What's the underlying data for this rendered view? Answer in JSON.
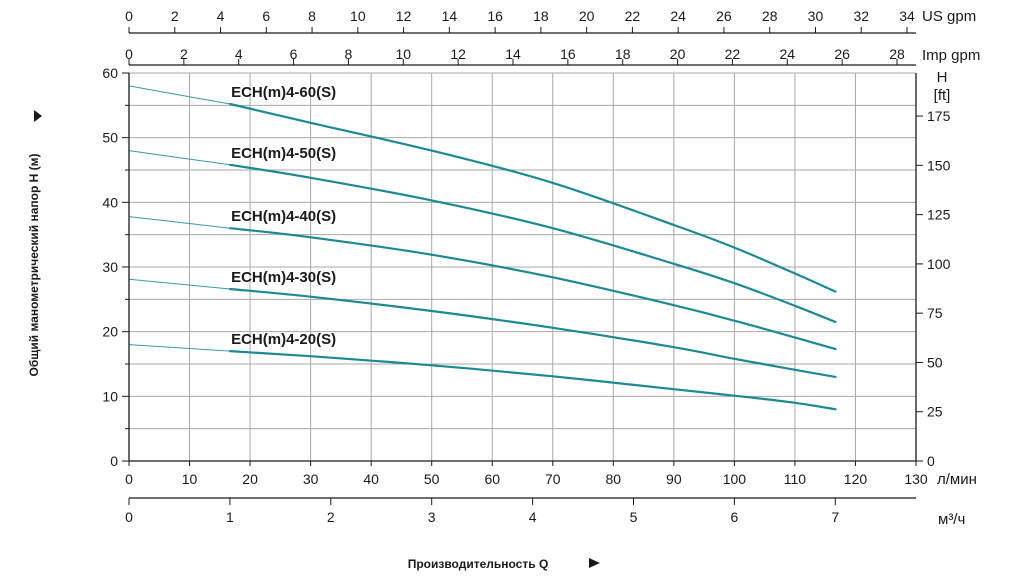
{
  "chart_data": {
    "type": "line",
    "x_label": "Производительность Q",
    "y_label": "Общий манометрический напор H (м)",
    "xlim": [
      0,
      130
    ],
    "ylim": [
      0,
      60
    ],
    "x_unit": "л/мин",
    "x_ticks": [
      0,
      10,
      20,
      30,
      40,
      50,
      60,
      70,
      80,
      90,
      100,
      110,
      120,
      130
    ],
    "y_ticks": [
      0,
      10,
      20,
      30,
      40,
      50,
      60
    ],
    "grid": true,
    "secondary_axes": {
      "us_gpm": {
        "unit": "US gpm",
        "max": 34,
        "ticks": [
          0,
          2,
          4,
          6,
          8,
          10,
          12,
          14,
          16,
          18,
          20,
          22,
          24,
          26,
          28,
          30,
          32,
          34
        ]
      },
      "imp_gpm": {
        "unit": "Imp gpm",
        "max": 28,
        "ticks": [
          0,
          2,
          4,
          6,
          8,
          10,
          12,
          14,
          16,
          18,
          20,
          22,
          24,
          26,
          28
        ]
      },
      "m3h": {
        "unit": "м³/ч",
        "max": 7.8,
        "ticks": [
          0,
          1,
          2,
          3,
          4,
          5,
          6,
          7
        ]
      },
      "ft": {
        "unit_top": "H",
        "unit": "[ft]",
        "max": 196.85,
        "ticks": [
          0,
          25,
          50,
          75,
          100,
          125,
          150,
          175
        ]
      }
    },
    "operating_range": [
      16.7,
      116.7
    ],
    "series": [
      {
        "name": "ECH(m)4-60(S)",
        "x": [
          0,
          16.7,
          30,
          50,
          70,
          90,
          100,
          110,
          116.7
        ],
        "y": [
          58,
          55.2,
          52.3,
          48,
          43,
          36.5,
          33,
          29,
          26.2
        ]
      },
      {
        "name": "ECH(m)4-50(S)",
        "x": [
          0,
          16.7,
          30,
          50,
          70,
          90,
          100,
          110,
          116.7
        ],
        "y": [
          48,
          45.8,
          43.8,
          40.3,
          36,
          30.5,
          27.5,
          24,
          21.5
        ]
      },
      {
        "name": "ECH(m)4-40(S)",
        "x": [
          0,
          16.7,
          30,
          50,
          70,
          90,
          100,
          110,
          116.7
        ],
        "y": [
          37.8,
          36,
          34.6,
          31.9,
          28.4,
          24.1,
          21.7,
          19.1,
          17.3
        ]
      },
      {
        "name": "ECH(m)4-30(S)",
        "x": [
          0,
          16.7,
          30,
          50,
          70,
          90,
          100,
          110,
          116.7
        ],
        "y": [
          28.1,
          26.6,
          25.4,
          23.2,
          20.6,
          17.6,
          15.8,
          14.1,
          13
        ]
      },
      {
        "name": "ECH(m)4-20(S)",
        "x": [
          0,
          16.7,
          30,
          50,
          70,
          90,
          100,
          110,
          116.7
        ],
        "y": [
          18,
          17,
          16.2,
          14.8,
          13.1,
          11.1,
          10.1,
          9,
          8
        ]
      }
    ],
    "colors": {
      "curve": "#1b8a93",
      "thin": "#3c9aa6",
      "grid": "#a8a8a8",
      "axis": "#1a1a1a"
    }
  }
}
